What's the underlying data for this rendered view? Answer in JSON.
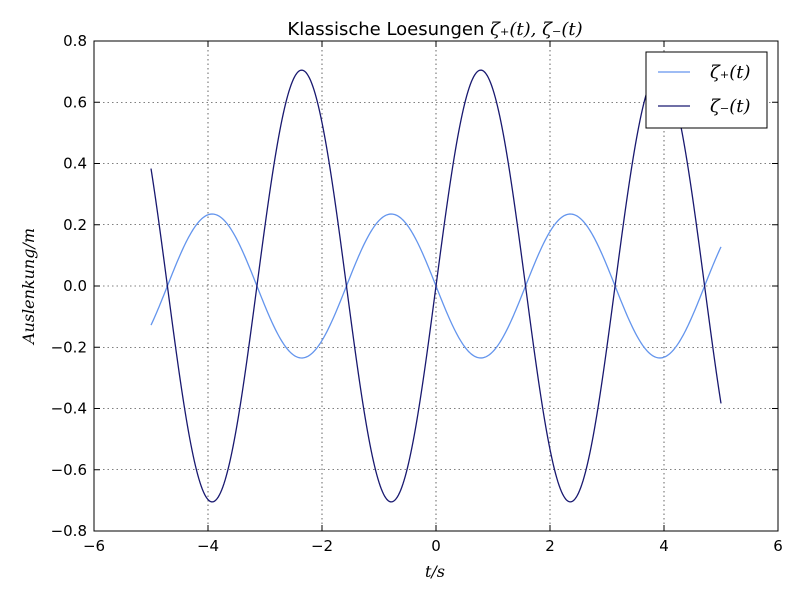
{
  "chart_data": {
    "type": "line",
    "title_prefix": "Klassische Loesungen ",
    "title_math": "ζ₊(t), ζ₋(t)",
    "xlabel": "t/s",
    "ylabel": "Auslenkung/m",
    "xlim": [
      -6,
      6
    ],
    "ylim": [
      -0.8,
      0.8
    ],
    "x_ticks": [
      "−6",
      "−4",
      "−2",
      "0",
      "2",
      "4",
      "6"
    ],
    "y_ticks": [
      "−0.8",
      "−0.6",
      "−0.4",
      "−0.2",
      "0.0",
      "0.2",
      "0.4",
      "0.6",
      "0.8"
    ],
    "grid": true,
    "legend_position": "top-right",
    "x_range": [
      -5,
      5
    ],
    "series": [
      {
        "name": "ζ₊(t)",
        "color": "#6495ed",
        "amplitude": 0.235,
        "omega": 2.0,
        "phase": 3.14159,
        "form": "y = A·sin(ω·x + φ)"
      },
      {
        "name": "ζ₋(t)",
        "color": "#191970",
        "amplitude": 0.705,
        "omega": 2.0,
        "phase": 0.0,
        "form": "y = A·sin(ω·x + φ)"
      }
    ]
  }
}
